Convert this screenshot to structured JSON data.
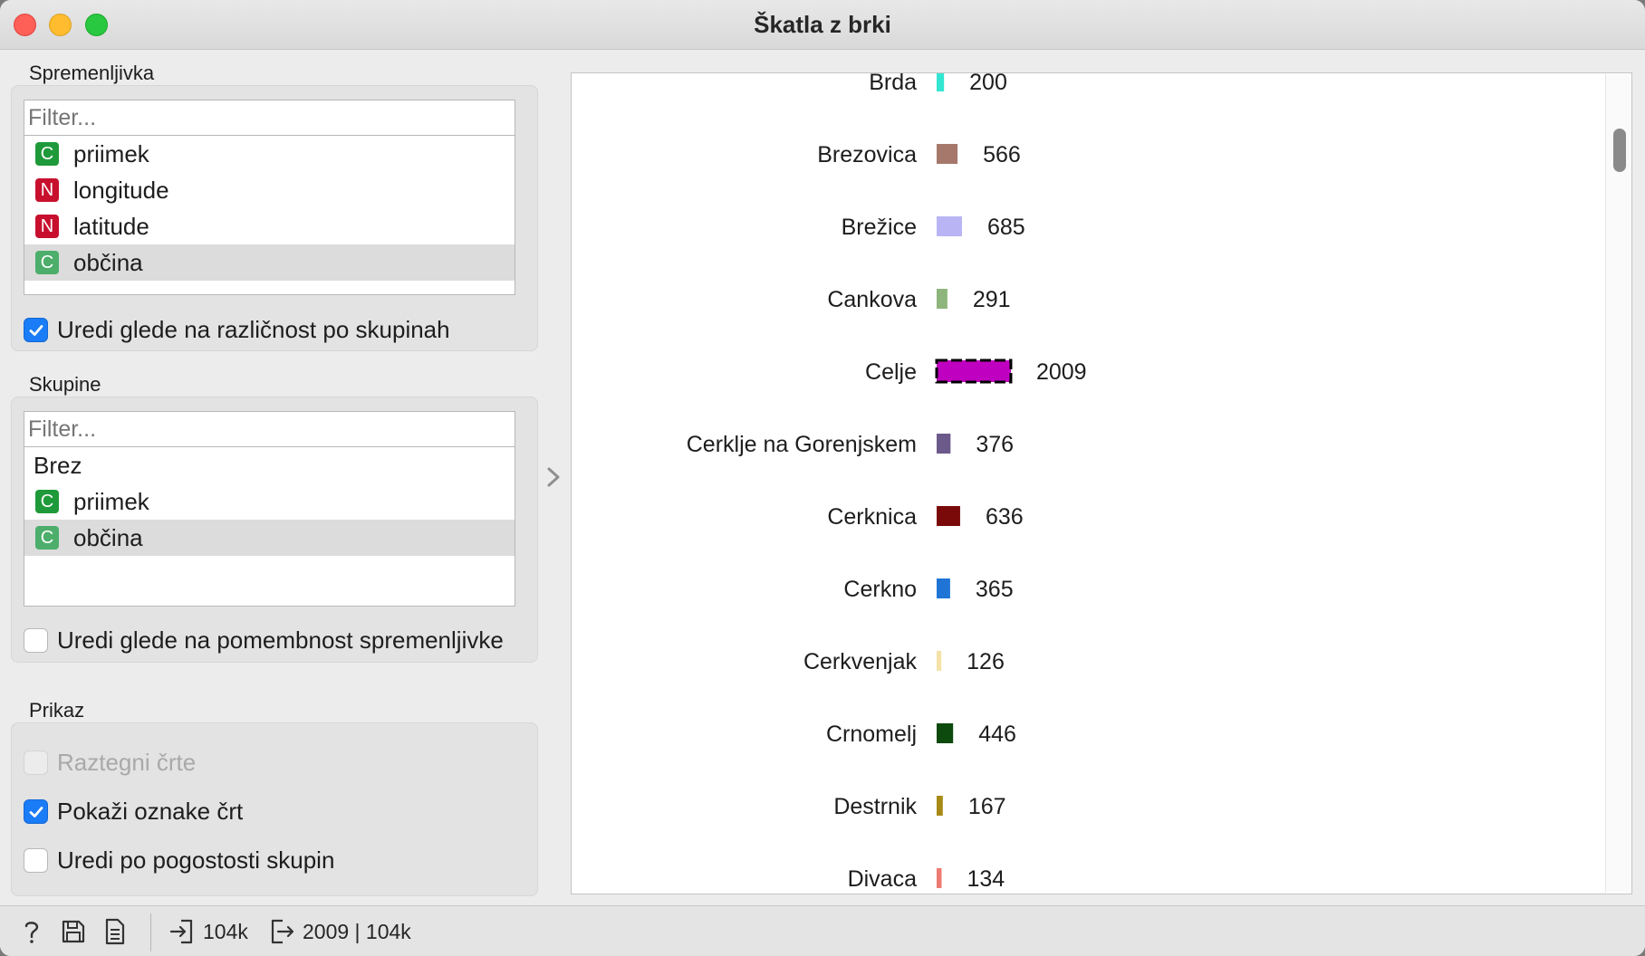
{
  "window": {
    "title": "Škatla z brki"
  },
  "variable_section": {
    "label": "Spremenljivka",
    "filter_placeholder": "Filter...",
    "items": [
      {
        "type": "C",
        "label": "priimek",
        "selected": false
      },
      {
        "type": "N",
        "label": "longitude",
        "selected": false
      },
      {
        "type": "N",
        "label": "latitude",
        "selected": false
      },
      {
        "type": "C",
        "label": "občina",
        "selected": true
      }
    ],
    "sort_checkbox": {
      "label": "Uredi glede na različnost po skupinah",
      "checked": true
    }
  },
  "groups_section": {
    "label": "Skupine",
    "filter_placeholder": "Filter...",
    "items": [
      {
        "type": "",
        "label": "Brez",
        "selected": false
      },
      {
        "type": "C",
        "label": "priimek",
        "selected": false
      },
      {
        "type": "C",
        "label": "občina",
        "selected": true
      }
    ],
    "sort_checkbox": {
      "label": "Uredi glede na pomembnost spremenljivke",
      "checked": false
    }
  },
  "display_section": {
    "label": "Prikaz",
    "stretch": {
      "label": "Raztegni črte",
      "checked": false,
      "disabled": true
    },
    "show_labels": {
      "label": "Pokaži oznake črt",
      "checked": true,
      "disabled": false
    },
    "sort_freq": {
      "label": "Uredi po pogostosti skupin",
      "checked": false,
      "disabled": false
    }
  },
  "statusbar": {
    "input_count": "104k",
    "output_count": "2009 | 104k"
  },
  "chart_data": {
    "type": "bar",
    "orientation": "horizontal",
    "categories": [
      "Brda",
      "Brezovica",
      "Brežice",
      "Cankova",
      "Celje",
      "Cerklje na Gorenjskem",
      "Cerknica",
      "Cerkno",
      "Cerkvenjak",
      "Crnomelj",
      "Destrnik",
      "Divaca"
    ],
    "values": [
      200,
      566,
      685,
      291,
      2009,
      376,
      636,
      365,
      126,
      446,
      167,
      134
    ],
    "colors": [
      "#33e6d2",
      "#a6786b",
      "#b9b5f5",
      "#8eb57c",
      "#c000c0",
      "#6c5a8a",
      "#7a0a0a",
      "#1f74d6",
      "#f5e2a6",
      "#0d4a0d",
      "#a88a16",
      "#ef7a72"
    ],
    "selected_category": "Celje",
    "value_labels_shown": true
  }
}
